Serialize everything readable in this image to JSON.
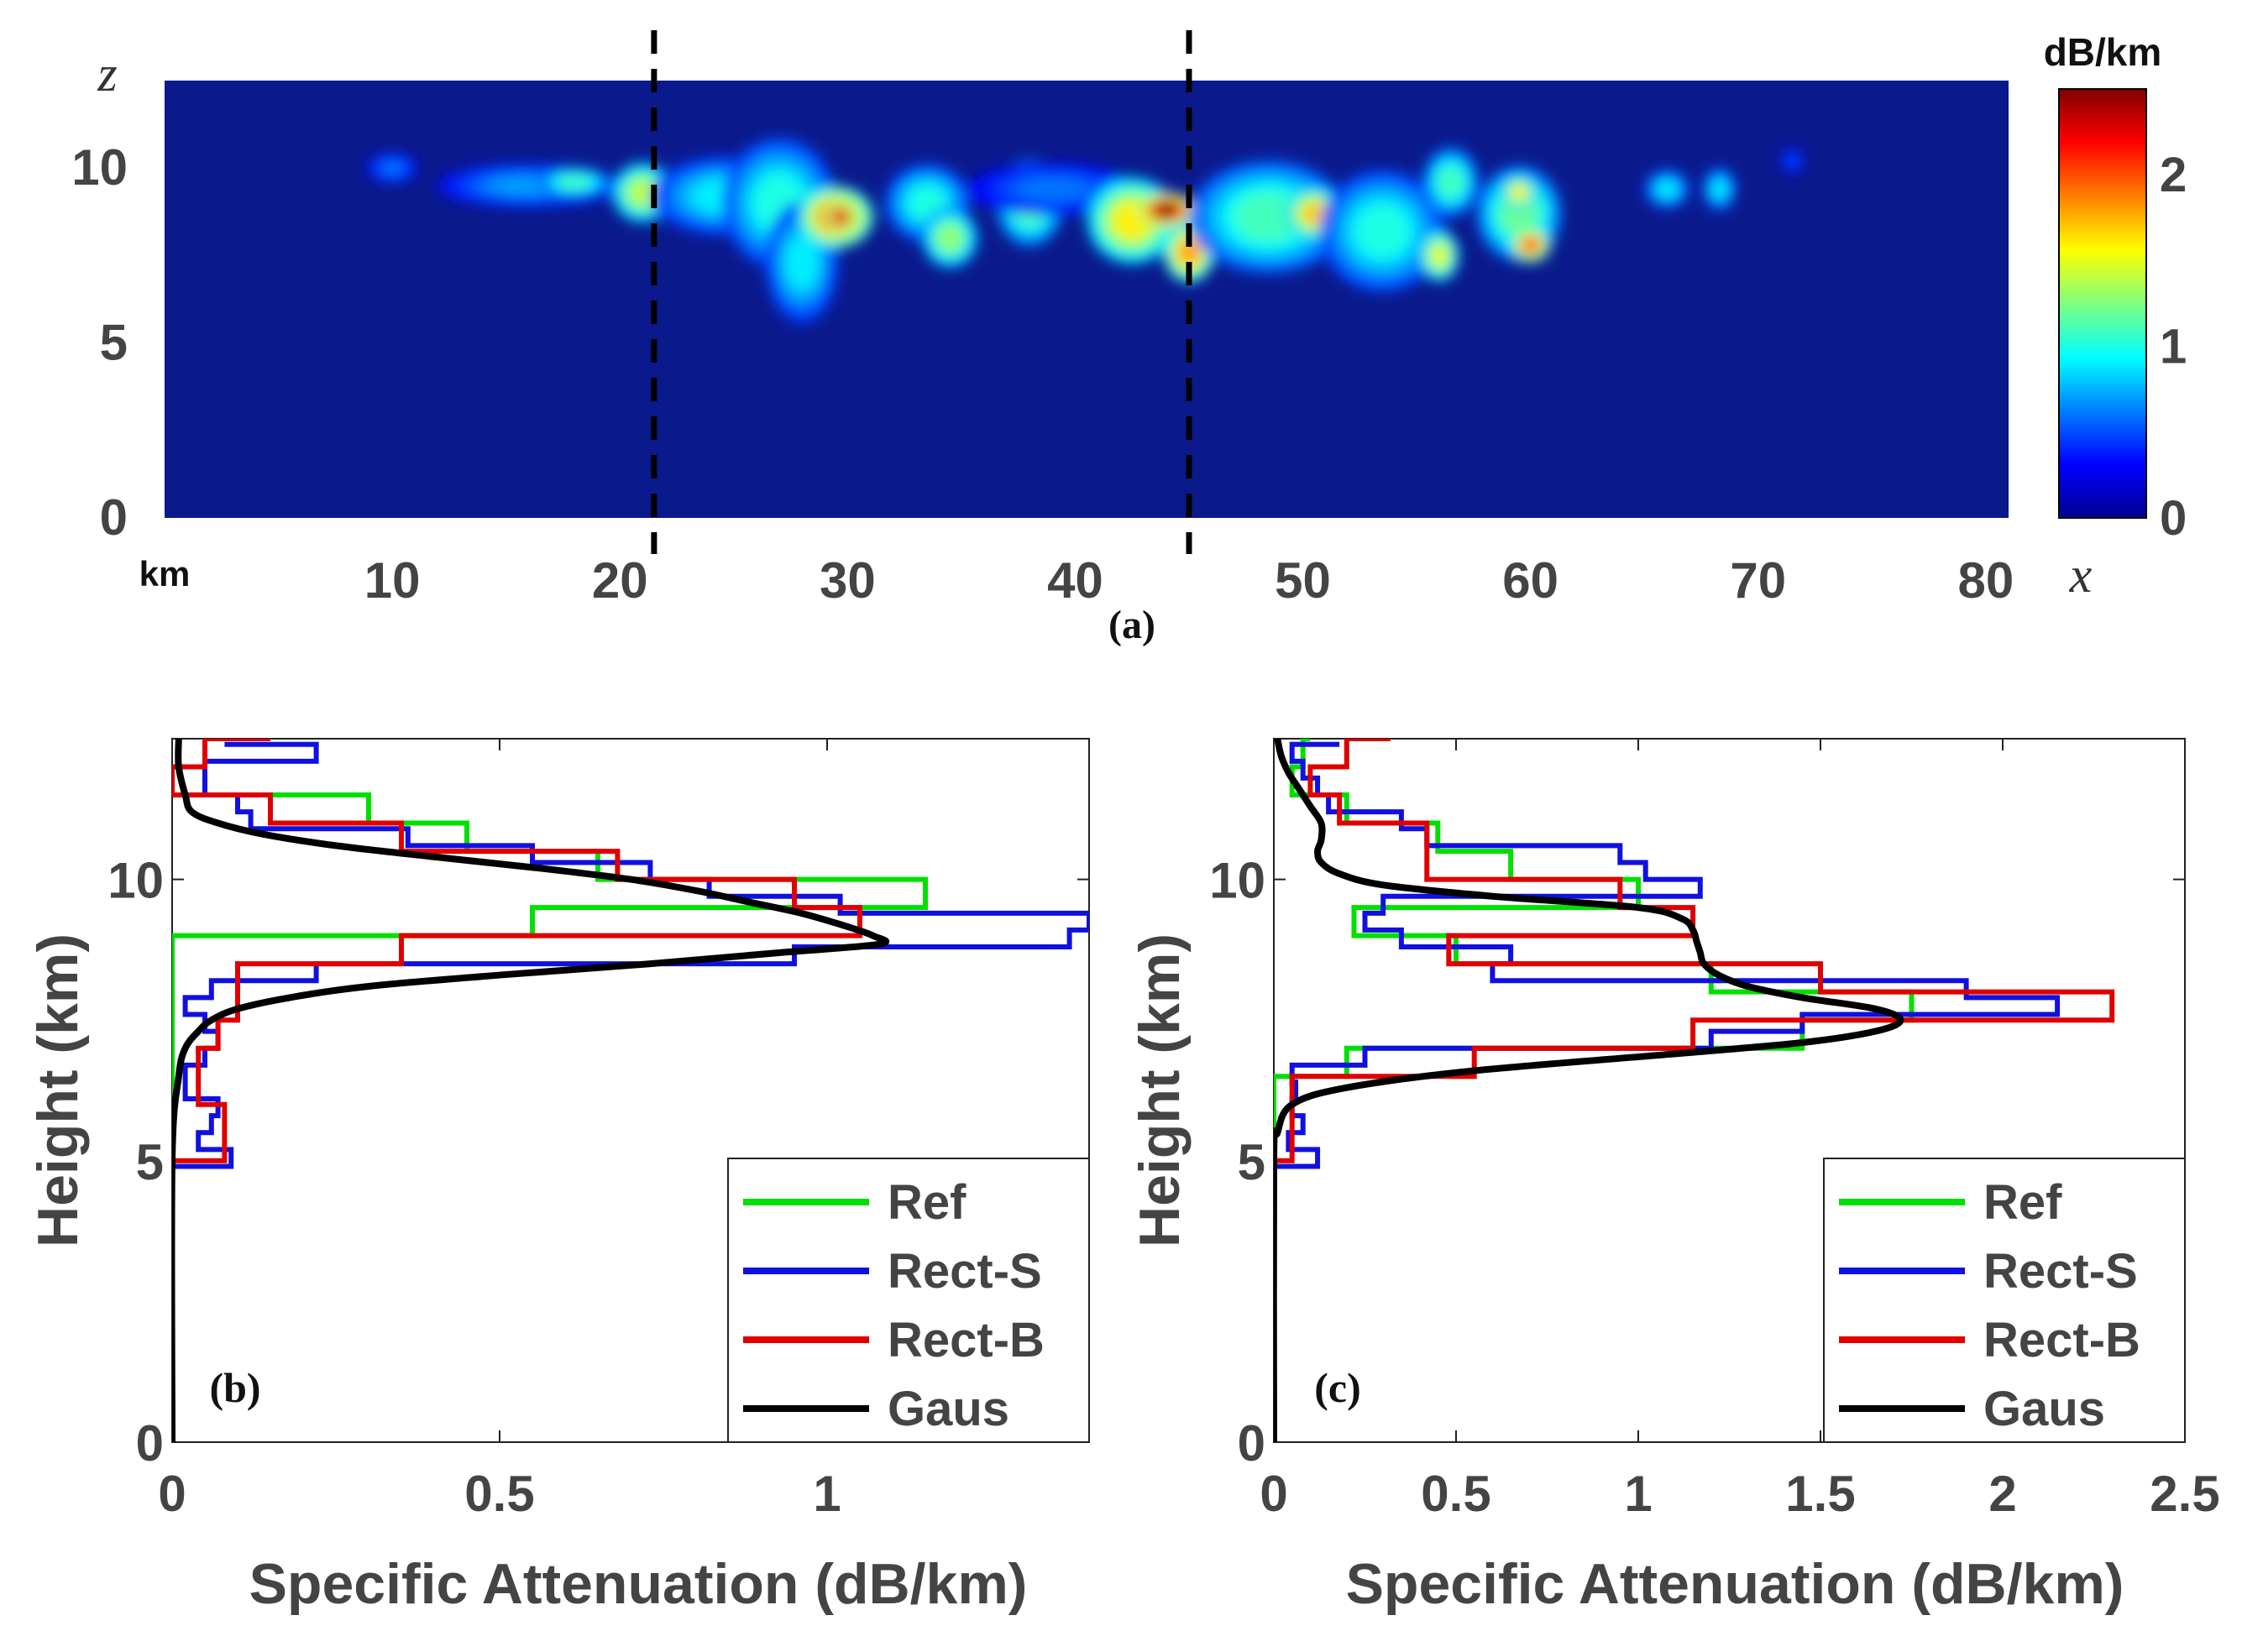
{
  "chart_data": [
    {
      "type": "heatmap",
      "panel_label": "(a)",
      "x_unit_label": "km",
      "x_axis_symbol": "x",
      "y_axis_symbol": "z",
      "xlim": [
        0,
        81
      ],
      "ylim": [
        0,
        12.5
      ],
      "xticks": [
        10,
        20,
        30,
        40,
        50,
        60,
        70,
        80
      ],
      "yticks": [
        0,
        5,
        10
      ],
      "dashed_lines_x": [
        21.5,
        45
      ],
      "colorbar": {
        "label": "dB/km",
        "min": 0,
        "max": 2.5,
        "ticks": [
          0,
          1,
          2
        ]
      },
      "background_color": "#0a1a8c",
      "cells": [
        {
          "x": 10,
          "z": 10.0,
          "rx": 0.9,
          "rz": 0.35,
          "v": 0.6
        },
        {
          "x": 16,
          "z": 9.5,
          "rx": 3.2,
          "rz": 0.5,
          "v": 0.7
        },
        {
          "x": 18,
          "z": 9.6,
          "rx": 1.3,
          "rz": 0.35,
          "v": 1.1
        },
        {
          "x": 21,
          "z": 9.3,
          "rx": 1.1,
          "rz": 0.7,
          "v": 1.4
        },
        {
          "x": 24.5,
          "z": 9.2,
          "rx": 2.5,
          "rz": 0.9,
          "v": 0.9
        },
        {
          "x": 27,
          "z": 9.0,
          "rx": 2.0,
          "rz": 1.5,
          "v": 1.0
        },
        {
          "x": 28,
          "z": 7.3,
          "rx": 1.3,
          "rz": 1.4,
          "v": 0.9
        },
        {
          "x": 29.5,
          "z": 8.6,
          "rx": 1.3,
          "rz": 0.7,
          "v": 2.0
        },
        {
          "x": 29.7,
          "z": 8.6,
          "rx": 0.6,
          "rz": 0.35,
          "v": 2.3
        },
        {
          "x": 33.5,
          "z": 9.0,
          "rx": 1.5,
          "rz": 0.9,
          "v": 1.0
        },
        {
          "x": 34.5,
          "z": 8.0,
          "rx": 1.0,
          "rz": 0.7,
          "v": 1.3
        },
        {
          "x": 38,
          "z": 9.0,
          "rx": 1.2,
          "rz": 1.0,
          "v": 1.2
        },
        {
          "x": 39,
          "z": 9.4,
          "rx": 3.0,
          "rz": 0.6,
          "v": 0.6
        },
        {
          "x": 42.5,
          "z": 8.5,
          "rx": 1.6,
          "rz": 1.0,
          "v": 1.6
        },
        {
          "x": 44,
          "z": 8.8,
          "rx": 1.0,
          "rz": 0.4,
          "v": 2.5
        },
        {
          "x": 45,
          "z": 7.6,
          "rx": 0.9,
          "rz": 0.7,
          "v": 1.8
        },
        {
          "x": 48.5,
          "z": 8.6,
          "rx": 2.8,
          "rz": 1.3,
          "v": 1.1
        },
        {
          "x": 50.5,
          "z": 8.7,
          "rx": 1.0,
          "rz": 0.6,
          "v": 1.7
        },
        {
          "x": 53.5,
          "z": 8.2,
          "rx": 2.2,
          "rz": 1.4,
          "v": 1.0
        },
        {
          "x": 56.5,
          "z": 9.6,
          "rx": 1.0,
          "rz": 0.8,
          "v": 1.1
        },
        {
          "x": 56,
          "z": 7.5,
          "rx": 0.7,
          "rz": 0.6,
          "v": 1.5
        },
        {
          "x": 59.5,
          "z": 8.7,
          "rx": 1.5,
          "rz": 1.1,
          "v": 1.2
        },
        {
          "x": 60,
          "z": 7.8,
          "rx": 0.7,
          "rz": 0.4,
          "v": 2.0
        },
        {
          "x": 59.5,
          "z": 9.3,
          "rx": 0.6,
          "rz": 0.4,
          "v": 1.6
        },
        {
          "x": 66,
          "z": 9.4,
          "rx": 0.8,
          "rz": 0.45,
          "v": 0.9
        },
        {
          "x": 68.3,
          "z": 9.4,
          "rx": 0.6,
          "rz": 0.5,
          "v": 0.9
        },
        {
          "x": 71.5,
          "z": 10.2,
          "rx": 0.4,
          "rz": 0.3,
          "v": 0.5
        }
      ]
    },
    {
      "type": "line",
      "panel_label": "(b)",
      "xlabel": "Specific Attenuation (dB/km)",
      "ylabel": "Height (km)",
      "xlim": [
        0,
        1.4
      ],
      "ylim": [
        0,
        12.5
      ],
      "xticks": [
        0,
        0.5,
        1
      ],
      "yticks": [
        0,
        5,
        10
      ],
      "xtick_labels": [
        "0",
        "0.5",
        "1"
      ],
      "ytick_labels": [
        "0",
        "5",
        "10"
      ],
      "legend_position": "bottom-right",
      "series": [
        {
          "name": "Ref",
          "style": "step",
          "color": "#00e000",
          "heights": [
            5,
            5.5,
            6,
            6.5,
            7,
            7.5,
            8,
            8.5,
            9,
            9.5,
            10,
            10.5,
            11,
            11.5,
            12,
            12.5
          ],
          "values": [
            0.0,
            0.0,
            0.0,
            0.0,
            0.0,
            0.0,
            0.0,
            0.0,
            0.55,
            1.15,
            0.65,
            0.45,
            0.3,
            0.0,
            0.05,
            0.1
          ]
        },
        {
          "name": "Rect-S",
          "style": "step",
          "color": "#1010e0",
          "heights": [
            4.9,
            5.2,
            5.5,
            5.8,
            6.1,
            6.4,
            6.7,
            7.0,
            7.3,
            7.6,
            7.9,
            8.2,
            8.5,
            8.8,
            9.1,
            9.4,
            9.7,
            10.0,
            10.3,
            10.6,
            10.9,
            11.2,
            11.5,
            11.8,
            12.1,
            12.4
          ],
          "values": [
            0.09,
            0.04,
            0.06,
            0.07,
            0.02,
            0.02,
            0.05,
            0.07,
            0.05,
            0.02,
            0.06,
            0.22,
            0.95,
            1.37,
            1.4,
            1.02,
            0.82,
            0.73,
            0.55,
            0.36,
            0.12,
            0.1,
            0.05,
            0.05,
            0.22,
            0.08
          ]
        },
        {
          "name": "Rect-B",
          "style": "step",
          "color": "#e00000",
          "heights": [
            5,
            5.5,
            6,
            6.5,
            7,
            7.5,
            8,
            8.5,
            9,
            9.5,
            10,
            10.5,
            11,
            11.5,
            12,
            12.5
          ],
          "values": [
            0.08,
            0.08,
            0.04,
            0.04,
            0.07,
            0.1,
            0.1,
            0.35,
            1.05,
            0.95,
            0.68,
            0.35,
            0.15,
            0.0,
            0.05,
            0.15
          ]
        },
        {
          "name": "Gaus",
          "style": "smooth",
          "color": "#000000",
          "heights": [
            0,
            5,
            6.5,
            7.0,
            7.3,
            7.5,
            7.7,
            7.9,
            8.1,
            8.3,
            8.5,
            8.7,
            8.85,
            9.0,
            9.2,
            9.4,
            9.6,
            9.8,
            10.0,
            10.2,
            10.4,
            10.6,
            10.8,
            11.0,
            11.2,
            11.5,
            12.0,
            12.5
          ],
          "values": [
            0.0,
            0.0,
            0.01,
            0.02,
            0.04,
            0.06,
            0.1,
            0.18,
            0.3,
            0.5,
            0.73,
            0.93,
            1.08,
            1.07,
            1.02,
            0.96,
            0.88,
            0.8,
            0.7,
            0.56,
            0.4,
            0.25,
            0.14,
            0.07,
            0.03,
            0.02,
            0.01,
            0.01
          ]
        }
      ]
    },
    {
      "type": "line",
      "panel_label": "(c)",
      "xlabel": "Specific Attenuation (dB/km)",
      "ylabel": "Height (km)",
      "xlim": [
        0,
        2.5
      ],
      "ylim": [
        0,
        12.5
      ],
      "xticks": [
        0,
        0.5,
        1,
        1.5,
        2,
        2.5
      ],
      "yticks": [
        0,
        5,
        10
      ],
      "xtick_labels": [
        "0",
        "0.5",
        "1",
        "1.5",
        "2",
        "2.5"
      ],
      "ytick_labels": [
        "0",
        "5",
        "10"
      ],
      "legend_position": "bottom-right",
      "series": [
        {
          "name": "Ref",
          "style": "step",
          "color": "#00e000",
          "heights": [
            5,
            5.5,
            6,
            6.5,
            7,
            7.5,
            8,
            8.5,
            9,
            9.5,
            10,
            10.5,
            11,
            11.5,
            12,
            12.5
          ],
          "values": [
            0.0,
            0.0,
            0.0,
            0.2,
            1.45,
            1.75,
            1.2,
            0.5,
            0.22,
            1.0,
            0.65,
            0.45,
            0.2,
            0.05,
            0.08,
            0.1
          ]
        },
        {
          "name": "Rect-S",
          "style": "step",
          "color": "#1010e0",
          "heights": [
            4.9,
            5.2,
            5.5,
            5.8,
            6.1,
            6.4,
            6.7,
            7.0,
            7.3,
            7.6,
            7.9,
            8.2,
            8.5,
            8.8,
            9.1,
            9.4,
            9.7,
            10.0,
            10.3,
            10.6,
            10.9,
            11.2,
            11.5,
            11.8,
            12.1,
            12.4
          ],
          "values": [
            0.12,
            0.04,
            0.08,
            0.05,
            0.06,
            0.05,
            0.25,
            1.2,
            1.45,
            2.15,
            1.9,
            0.6,
            0.65,
            0.35,
            0.25,
            0.3,
            1.17,
            1.02,
            0.95,
            0.42,
            0.35,
            0.15,
            0.12,
            0.08,
            0.05,
            0.18
          ]
        },
        {
          "name": "Rect-B",
          "style": "step",
          "color": "#e00000",
          "heights": [
            5,
            5.5,
            6,
            6.5,
            7,
            7.5,
            8,
            8.5,
            9,
            9.5,
            10,
            10.5,
            11,
            11.5,
            12,
            12.5
          ],
          "values": [
            0.05,
            0.05,
            0.05,
            0.55,
            1.15,
            2.3,
            1.5,
            0.48,
            1.15,
            0.95,
            0.42,
            0.42,
            0.18,
            0.1,
            0.2,
            0.32
          ]
        },
        {
          "name": "Gaus",
          "style": "smooth",
          "color": "#000000",
          "heights": [
            0,
            5,
            5.5,
            6.0,
            6.3,
            6.6,
            6.9,
            7.1,
            7.3,
            7.5,
            7.7,
            7.9,
            8.1,
            8.3,
            8.5,
            8.7,
            8.9,
            9.1,
            9.3,
            9.5,
            9.7,
            9.9,
            10.1,
            10.3,
            10.5,
            10.7,
            11.0,
            11.3,
            11.6,
            11.9,
            12.2,
            12.5
          ],
          "values": [
            0.0,
            0.0,
            0.01,
            0.05,
            0.2,
            0.55,
            1.1,
            1.45,
            1.65,
            1.72,
            1.65,
            1.45,
            1.3,
            1.22,
            1.18,
            1.17,
            1.16,
            1.15,
            1.12,
            1.0,
            0.6,
            0.3,
            0.18,
            0.13,
            0.12,
            0.13,
            0.13,
            0.1,
            0.07,
            0.04,
            0.02,
            0.01
          ]
        }
      ]
    }
  ]
}
